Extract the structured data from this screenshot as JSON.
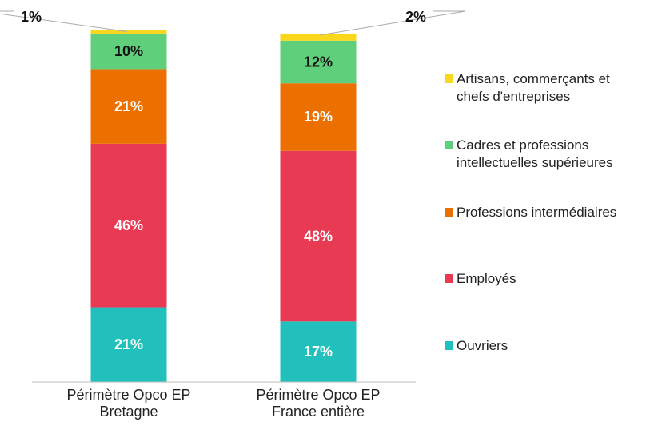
{
  "chart_data": {
    "type": "stacked_bar",
    "categories": [
      "Périmètre Opco EP Bretagne",
      "Périmètre Opco EP France entière"
    ],
    "series": [
      {
        "name": "Ouvriers",
        "color": "#22c0bc",
        "values": [
          21,
          17
        ],
        "value_labels": [
          "21%",
          "17%"
        ]
      },
      {
        "name": "Employés",
        "color": "#e83a52",
        "values": [
          46,
          48
        ],
        "value_labels": [
          "46%",
          "48%"
        ]
      },
      {
        "name": "Professions intermédiaires",
        "color": "#ec7000",
        "values": [
          21,
          19
        ],
        "value_labels": [
          "21%",
          "19%"
        ]
      },
      {
        "name": "Cadres et professions intellectuelles supérieures",
        "color": "#5fcf7b",
        "values": [
          10,
          12
        ],
        "value_labels": [
          "10%",
          "12%"
        ]
      },
      {
        "name": "Artisans, commerçants et chefs d'entreprises",
        "color": "#f9d71c",
        "values": [
          1,
          2
        ],
        "value_labels": [
          "1%",
          "2%"
        ]
      }
    ],
    "legend": "right"
  }
}
